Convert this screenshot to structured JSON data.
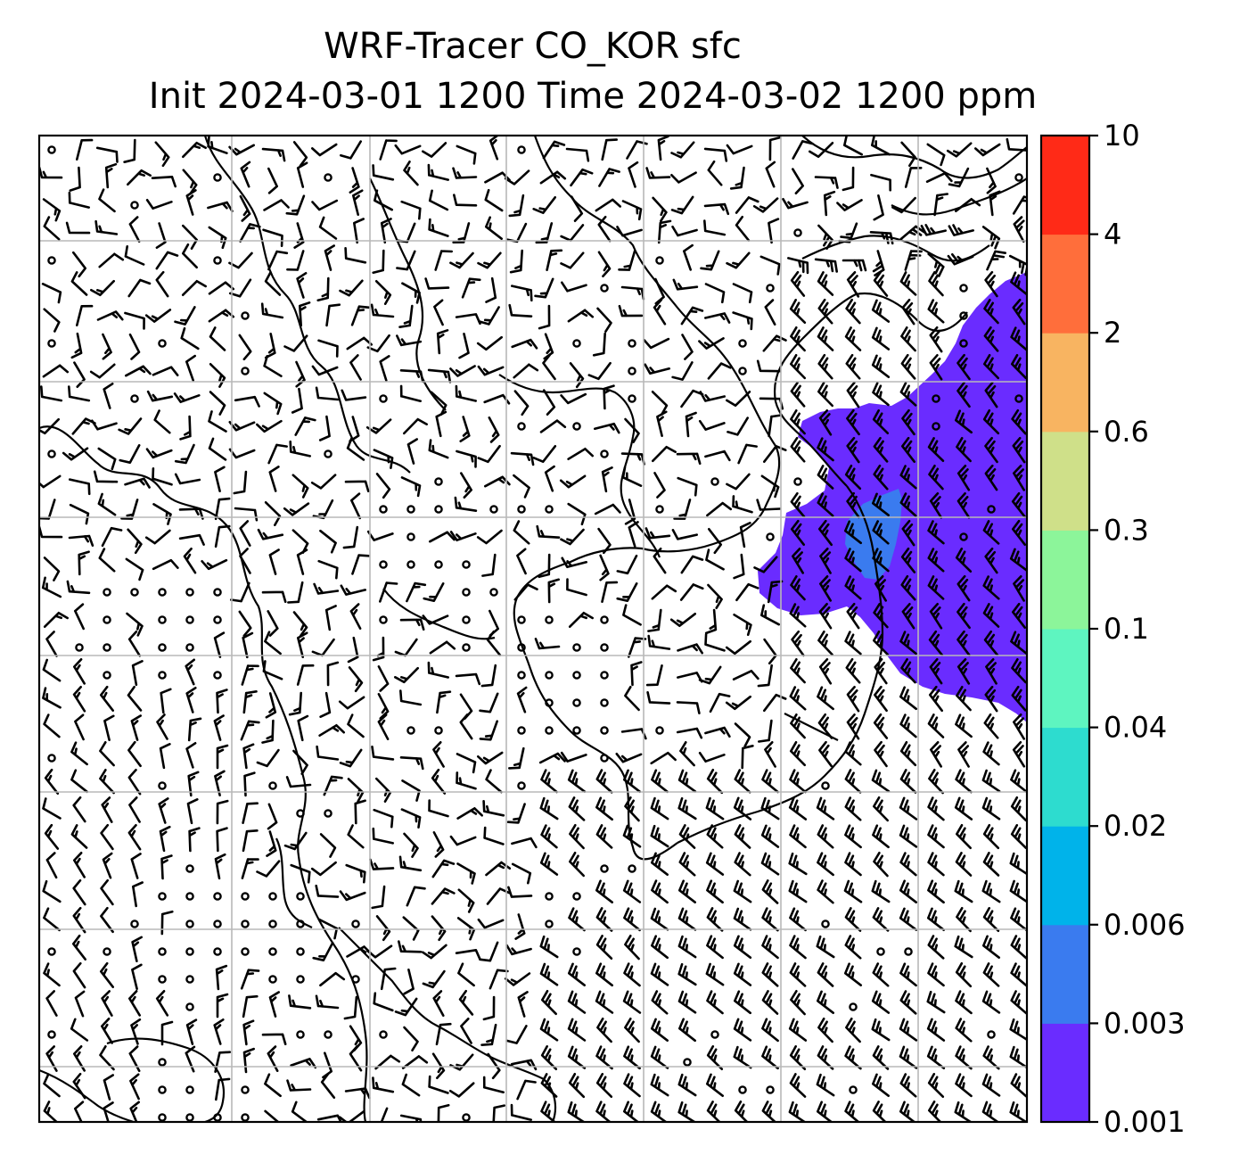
{
  "title": {
    "line1": "WRF-Tracer CO_KOR sfc",
    "line2": "Init 2024-03-01 1200 Time 2024-03-02 1200 ppm"
  },
  "colorbar": {
    "levels": [
      "0.001",
      "0.003",
      "0.006",
      "0.02",
      "0.04",
      "0.1",
      "0.3",
      "0.6",
      "2",
      "4",
      "10"
    ],
    "colors": [
      "#6a2cff",
      "#3a7bef",
      "#00b3ea",
      "#2ddccf",
      "#5ef5c0",
      "#8cf59a",
      "#cfe089",
      "#f8b461",
      "#ff6e3b",
      "#ff2a17"
    ]
  },
  "map": {
    "grid_color": "#b8b8b8",
    "plume_colors": {
      "low": "#6a2cff",
      "mid": "#3a7bef"
    }
  }
}
